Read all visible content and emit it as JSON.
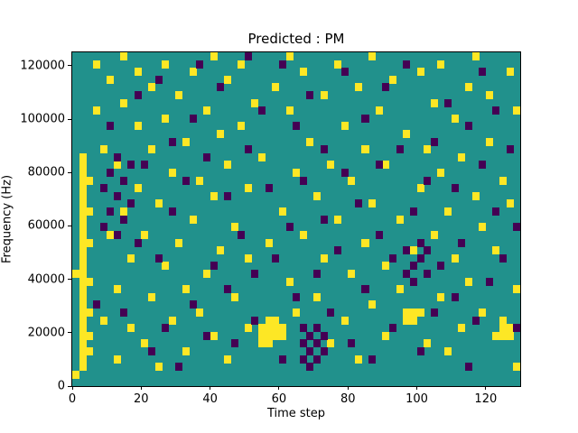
{
  "figure": {
    "background": "#ffffff"
  },
  "chart_data": {
    "type": "heatmap",
    "title": "Predicted : PM",
    "xlabel": "Time step",
    "ylabel": "Frequency (Hz)",
    "x_range": [
      0,
      130
    ],
    "y_range": [
      0,
      125000
    ],
    "xticks": [
      0,
      20,
      40,
      60,
      80,
      100,
      120
    ],
    "yticks": [
      0,
      20000,
      40000,
      60000,
      80000,
      100000,
      120000
    ],
    "grid": {
      "cols": 65,
      "rows": 43
    },
    "colors": {
      "background": "#21918c",
      "high": "#fde725",
      "low": "#440154"
    },
    "legend": "none",
    "cells": {
      "yellow": [
        [
          0,
          1
        ],
        [
          0,
          14
        ],
        [
          1,
          2
        ],
        [
          1,
          3
        ],
        [
          1,
          4
        ],
        [
          1,
          5
        ],
        [
          1,
          6
        ],
        [
          1,
          7
        ],
        [
          1,
          8
        ],
        [
          1,
          9
        ],
        [
          1,
          10
        ],
        [
          1,
          11
        ],
        [
          1,
          12
        ],
        [
          1,
          13
        ],
        [
          1,
          14
        ],
        [
          1,
          15
        ],
        [
          1,
          16
        ],
        [
          1,
          17
        ],
        [
          1,
          18
        ],
        [
          1,
          19
        ],
        [
          1,
          20
        ],
        [
          1,
          21
        ],
        [
          1,
          22
        ],
        [
          1,
          23
        ],
        [
          1,
          24
        ],
        [
          1,
          25
        ],
        [
          1,
          26
        ],
        [
          1,
          27
        ],
        [
          1,
          28
        ],
        [
          1,
          29
        ],
        [
          2,
          4
        ],
        [
          2,
          6
        ],
        [
          2,
          9
        ],
        [
          2,
          13
        ],
        [
          2,
          18
        ],
        [
          2,
          22
        ],
        [
          2,
          26
        ],
        [
          3,
          35
        ],
        [
          3,
          41
        ],
        [
          4,
          8
        ],
        [
          4,
          30
        ],
        [
          5,
          19
        ],
        [
          5,
          39
        ],
        [
          6,
          3
        ],
        [
          6,
          12
        ],
        [
          6,
          28
        ],
        [
          7,
          22
        ],
        [
          7,
          36
        ],
        [
          7,
          42
        ],
        [
          8,
          7
        ],
        [
          8,
          16
        ],
        [
          9,
          25
        ],
        [
          9,
          33
        ],
        [
          9,
          40
        ],
        [
          10,
          5
        ],
        [
          10,
          19
        ],
        [
          11,
          11
        ],
        [
          11,
          30
        ],
        [
          11,
          38
        ],
        [
          12,
          2
        ],
        [
          12,
          23
        ],
        [
          13,
          15
        ],
        [
          13,
          34
        ],
        [
          13,
          41
        ],
        [
          14,
          8
        ],
        [
          14,
          27
        ],
        [
          15,
          18
        ],
        [
          15,
          37
        ],
        [
          16,
          4
        ],
        [
          16,
          12
        ],
        [
          16,
          31
        ],
        [
          17,
          21
        ],
        [
          17,
          40
        ],
        [
          18,
          9
        ],
        [
          18,
          26
        ],
        [
          19,
          14
        ],
        [
          19,
          35
        ],
        [
          20,
          6
        ],
        [
          20,
          24
        ],
        [
          20,
          42
        ],
        [
          21,
          17
        ],
        [
          21,
          32
        ],
        [
          22,
          3
        ],
        [
          22,
          28
        ],
        [
          22,
          39
        ],
        [
          23,
          11
        ],
        [
          23,
          20
        ],
        [
          24,
          33
        ],
        [
          24,
          41
        ],
        [
          25,
          7
        ],
        [
          25,
          16
        ],
        [
          25,
          25
        ],
        [
          26,
          36
        ],
        [
          27,
          5
        ],
        [
          27,
          6
        ],
        [
          27,
          7
        ],
        [
          27,
          29
        ],
        [
          28,
          5
        ],
        [
          28,
          6
        ],
        [
          28,
          7
        ],
        [
          28,
          8
        ],
        [
          28,
          18
        ],
        [
          29,
          6
        ],
        [
          29,
          7
        ],
        [
          29,
          8
        ],
        [
          29,
          38
        ],
        [
          30,
          6
        ],
        [
          30,
          7
        ],
        [
          30,
          22
        ],
        [
          31,
          13
        ],
        [
          31,
          35
        ],
        [
          31,
          42
        ],
        [
          32,
          9
        ],
        [
          32,
          27
        ],
        [
          33,
          19
        ],
        [
          33,
          40
        ],
        [
          34,
          31
        ],
        [
          35,
          11
        ],
        [
          35,
          24
        ],
        [
          36,
          16
        ],
        [
          36,
          37
        ],
        [
          37,
          5
        ],
        [
          37,
          28
        ],
        [
          38,
          21
        ],
        [
          38,
          41
        ],
        [
          39,
          8
        ],
        [
          39,
          33
        ],
        [
          40,
          14
        ],
        [
          40,
          26
        ],
        [
          41,
          3
        ],
        [
          41,
          38
        ],
        [
          42,
          18
        ],
        [
          42,
          30
        ],
        [
          43,
          10
        ],
        [
          43,
          23
        ],
        [
          43,
          42
        ],
        [
          44,
          35
        ],
        [
          45,
          6
        ],
        [
          45,
          15
        ],
        [
          45,
          28
        ],
        [
          46,
          39
        ],
        [
          47,
          12
        ],
        [
          47,
          21
        ],
        [
          48,
          8
        ],
        [
          48,
          9
        ],
        [
          48,
          32
        ],
        [
          49,
          8
        ],
        [
          49,
          9
        ],
        [
          49,
          17
        ],
        [
          50,
          9
        ],
        [
          50,
          25
        ],
        [
          50,
          40
        ],
        [
          51,
          5
        ],
        [
          51,
          30
        ],
        [
          52,
          19
        ],
        [
          52,
          36
        ],
        [
          53,
          11
        ],
        [
          53,
          27
        ],
        [
          53,
          41
        ],
        [
          54,
          4
        ],
        [
          54,
          22
        ],
        [
          55,
          16
        ],
        [
          55,
          34
        ],
        [
          56,
          7
        ],
        [
          56,
          29
        ],
        [
          57,
          13
        ],
        [
          57,
          38
        ],
        [
          58,
          24
        ],
        [
          58,
          42
        ],
        [
          59,
          9
        ],
        [
          59,
          20
        ],
        [
          60,
          31
        ],
        [
          60,
          37
        ],
        [
          61,
          6
        ],
        [
          61,
          17
        ],
        [
          62,
          6
        ],
        [
          62,
          7
        ],
        [
          62,
          8
        ],
        [
          62,
          26
        ],
        [
          63,
          6
        ],
        [
          63,
          7
        ],
        [
          63,
          23
        ],
        [
          63,
          40
        ],
        [
          64,
          2
        ],
        [
          64,
          12
        ],
        [
          64,
          35
        ]
      ],
      "purple": [
        [
          4,
          20
        ],
        [
          4,
          25
        ],
        [
          5,
          22
        ],
        [
          5,
          27
        ],
        [
          6,
          19
        ],
        [
          6,
          24
        ],
        [
          6,
          29
        ],
        [
          7,
          21
        ],
        [
          7,
          26
        ],
        [
          8,
          23
        ],
        [
          8,
          28
        ],
        [
          33,
          3
        ],
        [
          33,
          5
        ],
        [
          33,
          7
        ],
        [
          34,
          2
        ],
        [
          34,
          4
        ],
        [
          34,
          6
        ],
        [
          35,
          3
        ],
        [
          35,
          5
        ],
        [
          35,
          7
        ],
        [
          36,
          4
        ],
        [
          36,
          6
        ],
        [
          48,
          14
        ],
        [
          48,
          17
        ],
        [
          49,
          13
        ],
        [
          49,
          15
        ],
        [
          50,
          16
        ],
        [
          50,
          18
        ],
        [
          51,
          14
        ],
        [
          51,
          17
        ],
        [
          3,
          10
        ],
        [
          5,
          33
        ],
        [
          7,
          9
        ],
        [
          9,
          18
        ],
        [
          9,
          37
        ],
        [
          10,
          28
        ],
        [
          11,
          4
        ],
        [
          12,
          16
        ],
        [
          12,
          39
        ],
        [
          13,
          7
        ],
        [
          14,
          22
        ],
        [
          14,
          31
        ],
        [
          15,
          2
        ],
        [
          16,
          26
        ],
        [
          17,
          10
        ],
        [
          17,
          34
        ],
        [
          18,
          41
        ],
        [
          19,
          6
        ],
        [
          19,
          29
        ],
        [
          20,
          15
        ],
        [
          21,
          38
        ],
        [
          22,
          12
        ],
        [
          22,
          24
        ],
        [
          23,
          5
        ],
        [
          24,
          19
        ],
        [
          25,
          30
        ],
        [
          25,
          42
        ],
        [
          26,
          8
        ],
        [
          26,
          14
        ],
        [
          27,
          35
        ],
        [
          28,
          25
        ],
        [
          29,
          16
        ],
        [
          30,
          3
        ],
        [
          30,
          41
        ],
        [
          31,
          20
        ],
        [
          32,
          11
        ],
        [
          32,
          33
        ],
        [
          33,
          26
        ],
        [
          34,
          37
        ],
        [
          35,
          14
        ],
        [
          36,
          21
        ],
        [
          36,
          30
        ],
        [
          37,
          9
        ],
        [
          38,
          17
        ],
        [
          39,
          27
        ],
        [
          39,
          40
        ],
        [
          40,
          5
        ],
        [
          41,
          23
        ],
        [
          42,
          12
        ],
        [
          42,
          34
        ],
        [
          43,
          3
        ],
        [
          44,
          19
        ],
        [
          44,
          28
        ],
        [
          45,
          38
        ],
        [
          46,
          7
        ],
        [
          46,
          16
        ],
        [
          47,
          30
        ],
        [
          48,
          41
        ],
        [
          49,
          22
        ],
        [
          50,
          4
        ],
        [
          51,
          26
        ],
        [
          52,
          9
        ],
        [
          52,
          31
        ],
        [
          53,
          15
        ],
        [
          54,
          36
        ],
        [
          55,
          11
        ],
        [
          55,
          25
        ],
        [
          56,
          18
        ],
        [
          57,
          2
        ],
        [
          57,
          33
        ],
        [
          58,
          8
        ],
        [
          59,
          28
        ],
        [
          59,
          40
        ],
        [
          60,
          13
        ],
        [
          61,
          22
        ],
        [
          61,
          35
        ],
        [
          62,
          16
        ],
        [
          63,
          30
        ],
        [
          64,
          7
        ],
        [
          64,
          20
        ]
      ]
    }
  }
}
